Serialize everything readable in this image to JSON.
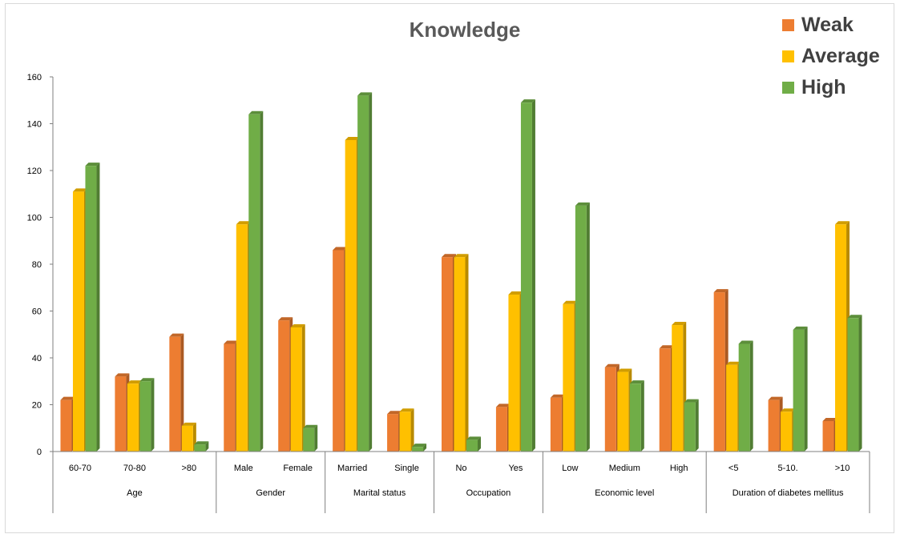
{
  "chart_data": {
    "type": "bar",
    "title": "Knowledge",
    "xlabel": "",
    "ylabel": "",
    "ylim": [
      0,
      160
    ],
    "yticks": [
      0,
      20,
      40,
      60,
      80,
      100,
      120,
      140,
      160
    ],
    "grid": false,
    "legend_position": "top-right",
    "groups": [
      {
        "name": "Age",
        "categories": [
          "60-70",
          "70-80",
          ">80"
        ]
      },
      {
        "name": "Gender",
        "categories": [
          "Male",
          "Female"
        ]
      },
      {
        "name": "Marital status",
        "categories": [
          "Married",
          "Single"
        ]
      },
      {
        "name": "Occupation",
        "categories": [
          "No",
          "Yes"
        ]
      },
      {
        "name": "Economic level",
        "categories": [
          "Low",
          "Medium",
          "High"
        ]
      },
      {
        "name": "Duration of diabetes mellitus",
        "categories": [
          "<5",
          "5-10.",
          ">10"
        ]
      }
    ],
    "categories": [
      "60-70",
      "70-80",
      ">80",
      "Male",
      "Female",
      "Married",
      "Single",
      "No",
      "Yes",
      "Low",
      "Medium",
      "High",
      "<5",
      "5-10.",
      ">10"
    ],
    "series": [
      {
        "name": "Weak",
        "color": "#ED7D31",
        "values": [
          22,
          32,
          49,
          46,
          56,
          86,
          16,
          83,
          19,
          23,
          36,
          44,
          68,
          22,
          13
        ]
      },
      {
        "name": "Average",
        "color": "#FFC000",
        "values": [
          111,
          29,
          11,
          97,
          53,
          133,
          17,
          83,
          67,
          63,
          34,
          54,
          37,
          17,
          97
        ]
      },
      {
        "name": "High",
        "color": "#70AD47",
        "values": [
          122,
          30,
          3,
          144,
          10,
          152,
          2,
          5,
          149,
          105,
          29,
          21,
          46,
          52,
          57
        ]
      }
    ]
  }
}
